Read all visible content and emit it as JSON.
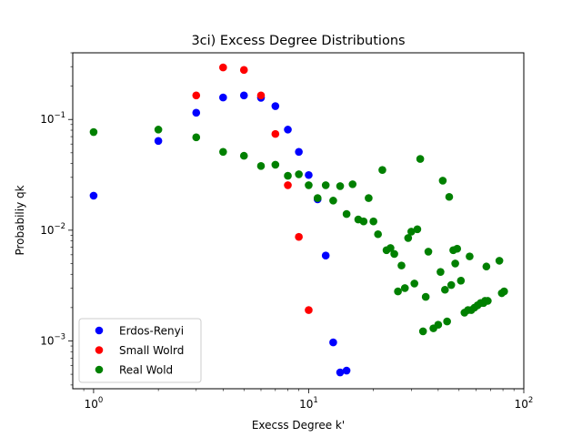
{
  "chart_data": {
    "type": "scatter",
    "title": "3ci) Excess Degree Distributions",
    "xlabel": "Execss Degree k'",
    "ylabel": "Probabiliy qk",
    "xscale": "log",
    "yscale": "log",
    "xlim": [
      0.8,
      100
    ],
    "ylim": [
      0.00037,
      0.4
    ],
    "x_ticks": [
      {
        "value": 1,
        "base": "10",
        "exp": "0"
      },
      {
        "value": 10,
        "base": "10",
        "exp": "1"
      },
      {
        "value": 100,
        "base": "10",
        "exp": "2"
      }
    ],
    "y_ticks": [
      {
        "value": 0.001,
        "base": "10",
        "exp": "−3"
      },
      {
        "value": 0.01,
        "base": "10",
        "exp": "−2"
      },
      {
        "value": 0.1,
        "base": "10",
        "exp": "−1"
      }
    ],
    "grid": false,
    "legend_position": "lower-left",
    "series": [
      {
        "name": "Erdos-Renyi",
        "color": "#0000ff",
        "points": [
          [
            1,
            0.0205
          ],
          [
            2,
            0.064
          ],
          [
            3,
            0.115
          ],
          [
            4,
            0.158
          ],
          [
            5,
            0.165
          ],
          [
            6,
            0.157
          ],
          [
            7,
            0.132
          ],
          [
            8,
            0.081
          ],
          [
            9,
            0.051
          ],
          [
            10,
            0.0315
          ],
          [
            11,
            0.019
          ],
          [
            12,
            0.0059
          ],
          [
            13,
            0.00097
          ],
          [
            14,
            0.00052
          ],
          [
            15,
            0.00054
          ]
        ]
      },
      {
        "name": "Small Wolrd",
        "color": "#ff0000",
        "points": [
          [
            3,
            0.165
          ],
          [
            4,
            0.295
          ],
          [
            5,
            0.28
          ],
          [
            6,
            0.165
          ],
          [
            7,
            0.074
          ],
          [
            8,
            0.0255
          ],
          [
            9,
            0.0087
          ],
          [
            10,
            0.0019
          ]
        ]
      },
      {
        "name": "Real Wold",
        "color": "#008000",
        "points": [
          [
            1,
            0.077
          ],
          [
            2,
            0.081
          ],
          [
            3,
            0.069
          ],
          [
            4,
            0.051
          ],
          [
            5,
            0.047
          ],
          [
            6,
            0.038
          ],
          [
            7,
            0.039
          ],
          [
            8,
            0.031
          ],
          [
            9,
            0.032
          ],
          [
            10,
            0.0255
          ],
          [
            11,
            0.0195
          ],
          [
            12,
            0.0255
          ],
          [
            13,
            0.0185
          ],
          [
            14,
            0.025
          ],
          [
            15,
            0.014
          ],
          [
            16,
            0.026
          ],
          [
            17,
            0.0125
          ],
          [
            18,
            0.012
          ],
          [
            19,
            0.0195
          ],
          [
            20,
            0.012
          ],
          [
            21,
            0.0092
          ],
          [
            22,
            0.035
          ],
          [
            23,
            0.0066
          ],
          [
            24,
            0.0069
          ],
          [
            25,
            0.0061
          ],
          [
            26,
            0.0028
          ],
          [
            27,
            0.0048
          ],
          [
            28,
            0.003
          ],
          [
            29,
            0.0085
          ],
          [
            30,
            0.0097
          ],
          [
            31,
            0.0033
          ],
          [
            32,
            0.0102
          ],
          [
            33,
            0.044
          ],
          [
            34,
            0.00122
          ],
          [
            35,
            0.0025
          ],
          [
            36,
            0.0064
          ],
          [
            38,
            0.0013
          ],
          [
            40,
            0.0014
          ],
          [
            41,
            0.0042
          ],
          [
            42,
            0.028
          ],
          [
            43,
            0.0029
          ],
          [
            44,
            0.0015
          ],
          [
            45,
            0.02
          ],
          [
            46,
            0.0032
          ],
          [
            47,
            0.0066
          ],
          [
            48,
            0.005
          ],
          [
            49,
            0.0068
          ],
          [
            51,
            0.0035
          ],
          [
            53,
            0.0018
          ],
          [
            55,
            0.0019
          ],
          [
            56,
            0.0058
          ],
          [
            57,
            0.0019
          ],
          [
            59,
            0.002
          ],
          [
            61,
            0.0021
          ],
          [
            63,
            0.0022
          ],
          [
            65,
            0.0022
          ],
          [
            66,
            0.0023
          ],
          [
            67,
            0.0047
          ],
          [
            68,
            0.0023
          ],
          [
            77,
            0.0053
          ],
          [
            79,
            0.0027
          ],
          [
            81,
            0.0028
          ]
        ]
      }
    ]
  }
}
